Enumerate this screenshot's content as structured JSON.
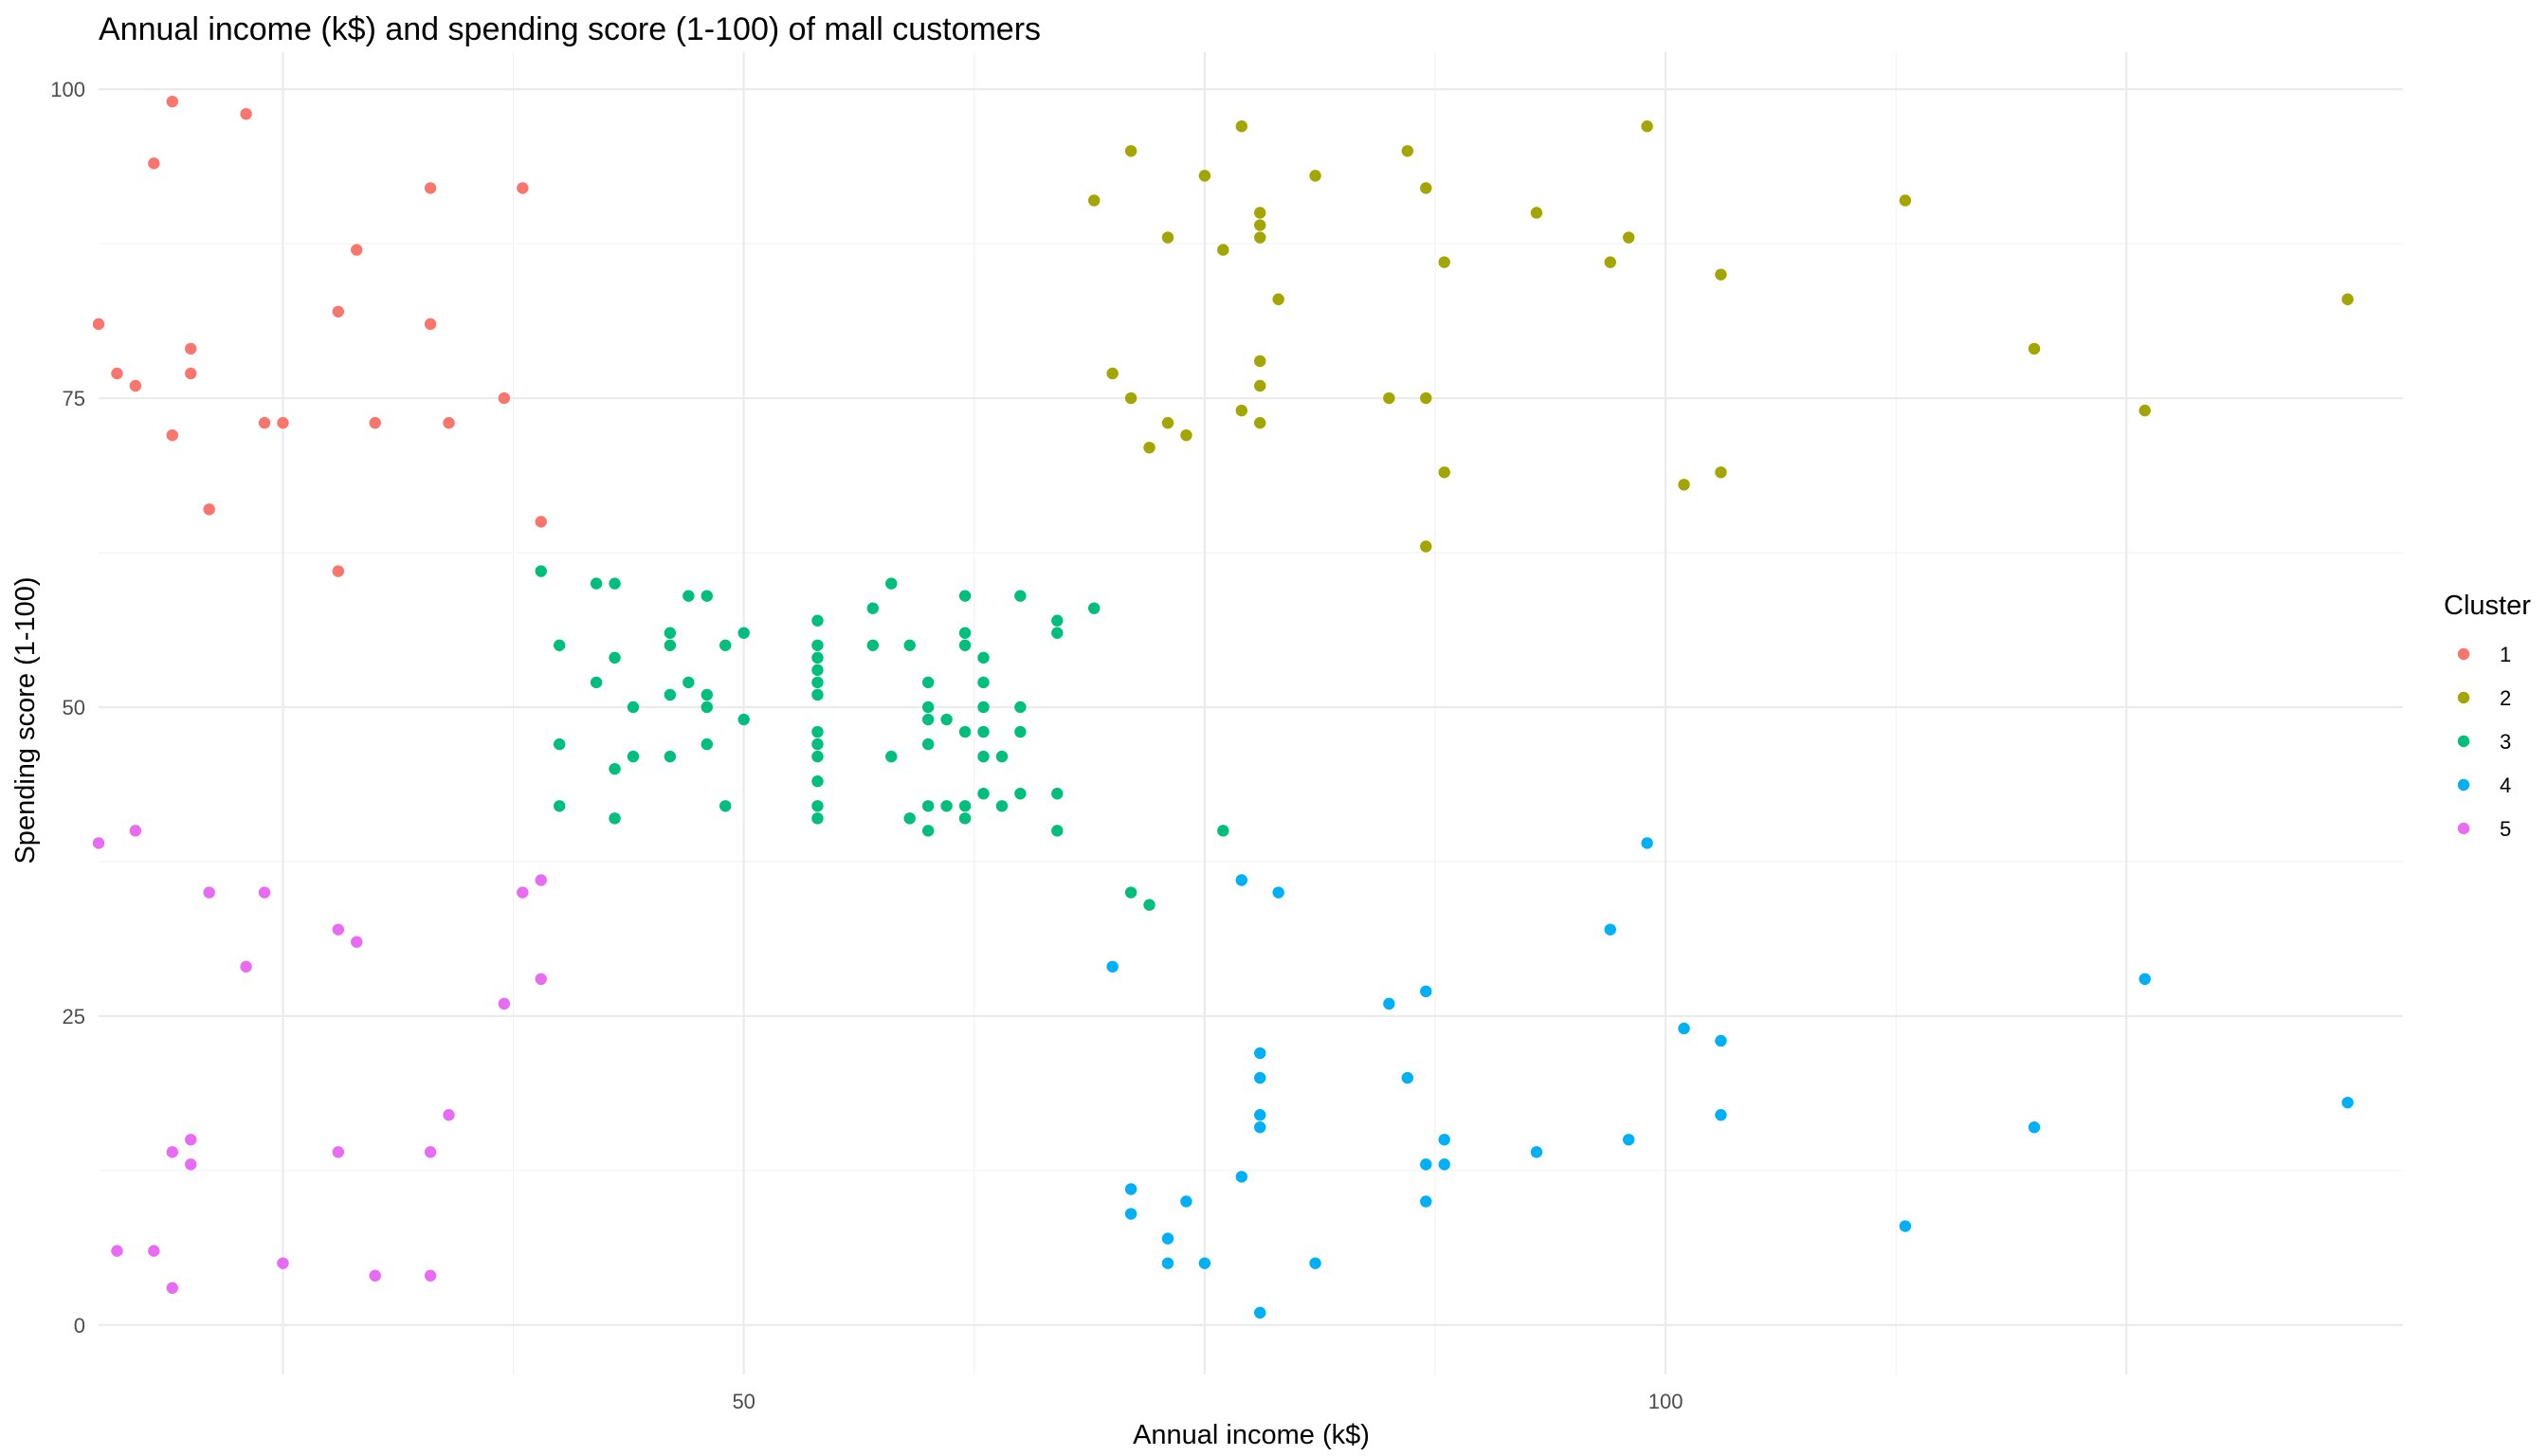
{
  "chart_data": {
    "type": "scatter",
    "title": "Annual income (k$) and spending score (1-100) of mall customers",
    "xlabel": "Annual income (k$)",
    "ylabel": "Spending score (1-100)",
    "xlim": [
      15,
      140
    ],
    "ylim": [
      -4,
      103
    ],
    "x_ticks": [
      {
        "value": 25,
        "label": ""
      },
      {
        "value": 50,
        "label": "50"
      },
      {
        "value": 75,
        "label": ""
      },
      {
        "value": 100,
        "label": "100"
      },
      {
        "value": 125,
        "label": ""
      }
    ],
    "y_ticks": [
      {
        "value": 0,
        "label": "0"
      },
      {
        "value": 25,
        "label": "25"
      },
      {
        "value": 50,
        "label": "50"
      },
      {
        "value": 75,
        "label": "75"
      },
      {
        "value": 100,
        "label": "100"
      }
    ],
    "grid": true,
    "legend": {
      "title": "Cluster",
      "position": "right"
    },
    "series": [
      {
        "name": "1",
        "color": "#F8766D",
        "points": [
          [
            15,
            81
          ],
          [
            16,
            77
          ],
          [
            17,
            76
          ],
          [
            18,
            94
          ],
          [
            19,
            72
          ],
          [
            19,
            99
          ],
          [
            20,
            77
          ],
          [
            20,
            79
          ],
          [
            21,
            66
          ],
          [
            23,
            98
          ],
          [
            24,
            73
          ],
          [
            25,
            73
          ],
          [
            28,
            82
          ],
          [
            28,
            61
          ],
          [
            29,
            87
          ],
          [
            30,
            73
          ],
          [
            33,
            92
          ],
          [
            33,
            81
          ],
          [
            34,
            73
          ],
          [
            37,
            75
          ],
          [
            38,
            92
          ],
          [
            39,
            65
          ]
        ]
      },
      {
        "name": "2",
        "color": "#A3A500",
        "points": [
          [
            69,
            91
          ],
          [
            70,
            77
          ],
          [
            71,
            95
          ],
          [
            71,
            75
          ],
          [
            72,
            71
          ],
          [
            73,
            88
          ],
          [
            73,
            73
          ],
          [
            74,
            72
          ],
          [
            75,
            93
          ],
          [
            76,
            87
          ],
          [
            77,
            97
          ],
          [
            77,
            74
          ],
          [
            78,
            90
          ],
          [
            78,
            89
          ],
          [
            78,
            88
          ],
          [
            78,
            78
          ],
          [
            78,
            76
          ],
          [
            78,
            73
          ],
          [
            79,
            83
          ],
          [
            81,
            93
          ],
          [
            85,
            75
          ],
          [
            86,
            95
          ],
          [
            87,
            92
          ],
          [
            87,
            75
          ],
          [
            87,
            63
          ],
          [
            88,
            86
          ],
          [
            88,
            69
          ],
          [
            93,
            90
          ],
          [
            97,
            86
          ],
          [
            98,
            88
          ],
          [
            99,
            97
          ],
          [
            101,
            68
          ],
          [
            103,
            85
          ],
          [
            103,
            69
          ],
          [
            113,
            91
          ],
          [
            120,
            79
          ],
          [
            126,
            74
          ],
          [
            137,
            83
          ]
        ]
      },
      {
        "name": "3",
        "color": "#00BF7D",
        "points": [
          [
            39,
            61
          ],
          [
            40,
            55
          ],
          [
            40,
            47
          ],
          [
            40,
            42
          ],
          [
            42,
            52
          ],
          [
            42,
            60
          ],
          [
            43,
            60
          ],
          [
            43,
            54
          ],
          [
            43,
            45
          ],
          [
            43,
            41
          ],
          [
            44,
            50
          ],
          [
            44,
            46
          ],
          [
            46,
            56
          ],
          [
            46,
            55
          ],
          [
            46,
            51
          ],
          [
            46,
            46
          ],
          [
            47,
            59
          ],
          [
            47,
            52
          ],
          [
            48,
            59
          ],
          [
            48,
            51
          ],
          [
            48,
            50
          ],
          [
            48,
            47
          ],
          [
            49,
            55
          ],
          [
            49,
            42
          ],
          [
            50,
            56
          ],
          [
            50,
            49
          ],
          [
            54,
            57
          ],
          [
            54,
            55
          ],
          [
            54,
            54
          ],
          [
            54,
            53
          ],
          [
            54,
            52
          ],
          [
            54,
            51
          ],
          [
            54,
            48
          ],
          [
            54,
            47
          ],
          [
            54,
            46
          ],
          [
            54,
            44
          ],
          [
            54,
            42
          ],
          [
            54,
            41
          ],
          [
            57,
            58
          ],
          [
            57,
            55
          ],
          [
            58,
            60
          ],
          [
            58,
            46
          ],
          [
            59,
            55
          ],
          [
            59,
            41
          ],
          [
            60,
            52
          ],
          [
            60,
            50
          ],
          [
            60,
            49
          ],
          [
            60,
            47
          ],
          [
            60,
            42
          ],
          [
            60,
            40
          ],
          [
            61,
            49
          ],
          [
            61,
            42
          ],
          [
            62,
            59
          ],
          [
            62,
            56
          ],
          [
            62,
            55
          ],
          [
            62,
            48
          ],
          [
            62,
            42
          ],
          [
            62,
            41
          ],
          [
            63,
            54
          ],
          [
            63,
            52
          ],
          [
            63,
            50
          ],
          [
            63,
            48
          ],
          [
            63,
            46
          ],
          [
            63,
            43
          ],
          [
            64,
            46
          ],
          [
            64,
            42
          ],
          [
            65,
            59
          ],
          [
            65,
            50
          ],
          [
            65,
            48
          ],
          [
            65,
            43
          ],
          [
            67,
            57
          ],
          [
            67,
            56
          ],
          [
            67,
            43
          ],
          [
            67,
            40
          ],
          [
            69,
            58
          ],
          [
            71,
            35
          ],
          [
            72,
            34
          ],
          [
            76,
            40
          ]
        ]
      },
      {
        "name": "4",
        "color": "#00B0F6",
        "points": [
          [
            70,
            29
          ],
          [
            71,
            11
          ],
          [
            71,
            9
          ],
          [
            73,
            7
          ],
          [
            73,
            5
          ],
          [
            74,
            10
          ],
          [
            75,
            5
          ],
          [
            77,
            36
          ],
          [
            77,
            12
          ],
          [
            78,
            22
          ],
          [
            78,
            20
          ],
          [
            78,
            17
          ],
          [
            78,
            16
          ],
          [
            78,
            1
          ],
          [
            79,
            35
          ],
          [
            81,
            5
          ],
          [
            85,
            26
          ],
          [
            86,
            20
          ],
          [
            87,
            27
          ],
          [
            87,
            13
          ],
          [
            87,
            10
          ],
          [
            88,
            15
          ],
          [
            88,
            13
          ],
          [
            93,
            14
          ],
          [
            97,
            32
          ],
          [
            98,
            15
          ],
          [
            99,
            39
          ],
          [
            101,
            24
          ],
          [
            103,
            23
          ],
          [
            103,
            17
          ],
          [
            113,
            8
          ],
          [
            120,
            16
          ],
          [
            126,
            28
          ],
          [
            137,
            18
          ]
        ]
      },
      {
        "name": "5",
        "color": "#E76BF3",
        "points": [
          [
            15,
            39
          ],
          [
            16,
            6
          ],
          [
            17,
            40
          ],
          [
            18,
            6
          ],
          [
            19,
            14
          ],
          [
            19,
            3
          ],
          [
            20,
            15
          ],
          [
            20,
            13
          ],
          [
            21,
            35
          ],
          [
            23,
            29
          ],
          [
            24,
            35
          ],
          [
            25,
            5
          ],
          [
            28,
            32
          ],
          [
            28,
            14
          ],
          [
            29,
            31
          ],
          [
            30,
            4
          ],
          [
            33,
            14
          ],
          [
            33,
            4
          ],
          [
            34,
            17
          ],
          [
            37,
            26
          ],
          [
            38,
            35
          ],
          [
            39,
            36
          ],
          [
            39,
            28
          ]
        ]
      }
    ]
  }
}
